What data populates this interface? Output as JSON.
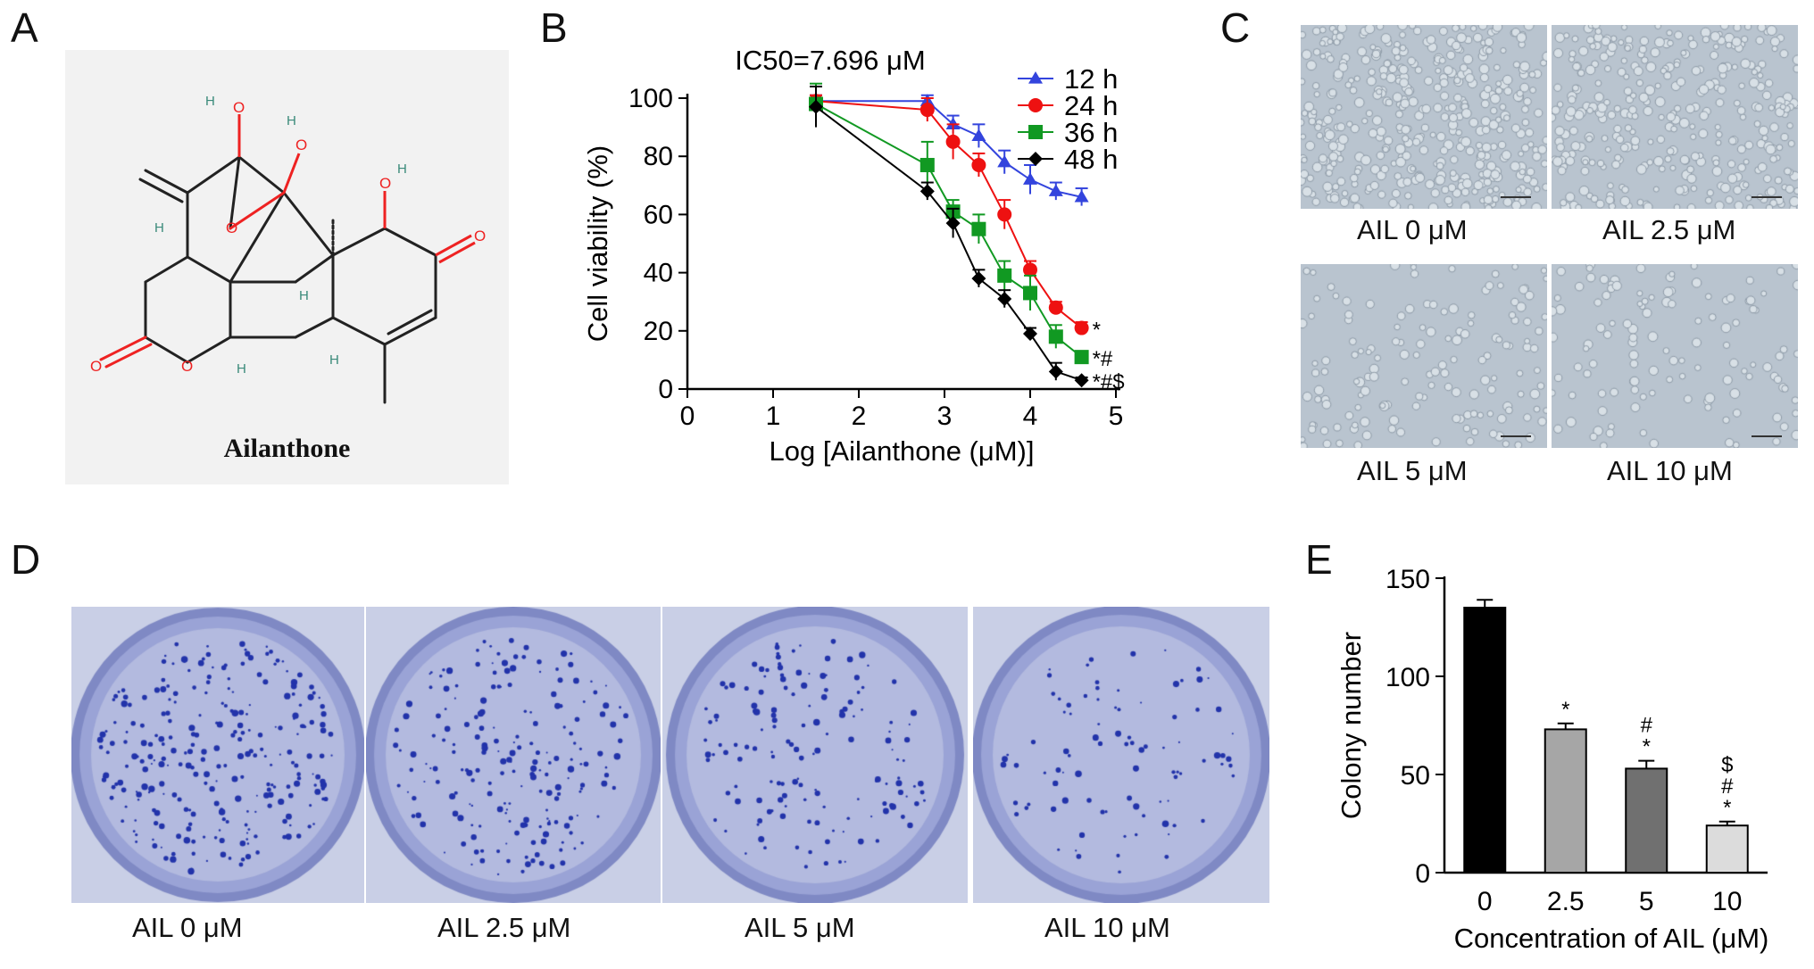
{
  "panels": {
    "a": {
      "letter": "A",
      "molecule_name": "Ailanthone"
    },
    "b": {
      "letter": "B"
    },
    "c": {
      "letter": "C",
      "captions": [
        "AIL 0 μM",
        "AIL 2.5 μM",
        "AIL 5 μM",
        "AIL 10 μM"
      ]
    },
    "d": {
      "letter": "D",
      "captions": [
        "AIL 0 μM",
        "AIL 2.5 μM",
        "AIL 5 μM",
        "AIL 10 μM"
      ]
    },
    "e": {
      "letter": "E"
    }
  },
  "colors": {
    "h12": "#3344dd",
    "h24": "#ee1111",
    "h36": "#119922",
    "h48": "#000000",
    "bar0": "#000000",
    "bar1": "#a6a6a6",
    "bar2": "#707070",
    "bar3": "#dcdcdc",
    "dish": "#9aa3d6",
    "colony": "#2233aa"
  },
  "chart_data": [
    {
      "type": "line",
      "annotation": "IC50=7.696 μM",
      "xlabel": "Log [Ailanthone (μM)]",
      "ylabel": "Cell viability (%)",
      "xlim": [
        0,
        5
      ],
      "ylim": [
        0,
        100
      ],
      "xticks": [
        0,
        1,
        2,
        3,
        4,
        5
      ],
      "yticks": [
        0,
        20,
        40,
        60,
        80,
        100
      ],
      "x": [
        1.5,
        2.8,
        3.1,
        3.4,
        3.7,
        4.0,
        4.3,
        4.6
      ],
      "legend_position": "top-right",
      "series": [
        {
          "name": "12 h",
          "marker": "triangle",
          "values": [
            99,
            99,
            91,
            87,
            78,
            72,
            68,
            66
          ],
          "errors": [
            2,
            2,
            3,
            4,
            4,
            5,
            3,
            3
          ],
          "end_mark": ""
        },
        {
          "name": "24 h",
          "marker": "circle",
          "values": [
            99,
            96,
            85,
            77,
            60,
            41,
            28,
            21
          ],
          "errors": [
            2,
            4,
            6,
            4,
            5,
            3,
            2,
            2
          ],
          "end_mark": "*"
        },
        {
          "name": "36 h",
          "marker": "square",
          "values": [
            98,
            77,
            61,
            55,
            39,
            33,
            18,
            11
          ],
          "errors": [
            7,
            8,
            4,
            5,
            5,
            6,
            4,
            2
          ],
          "end_mark": "*#"
        },
        {
          "name": "48 h",
          "marker": "diamond",
          "values": [
            97,
            68,
            57,
            38,
            31,
            19,
            6,
            3
          ],
          "errors": [
            7,
            3,
            5,
            3,
            3,
            2,
            3,
            1
          ],
          "end_mark": "*#$"
        }
      ]
    },
    {
      "type": "bar",
      "xlabel": "Concentration of AIL (μM)",
      "ylabel": "Colony number",
      "ylim": [
        0,
        150
      ],
      "yticks": [
        0,
        50,
        100,
        150
      ],
      "categories": [
        "0",
        "2.5",
        "5",
        "10"
      ],
      "values": [
        135,
        73,
        53,
        24
      ],
      "errors": [
        4,
        3,
        4,
        2
      ],
      "annotations": [
        [],
        [
          "*"
        ],
        [
          "#",
          "*"
        ],
        [
          "$",
          "#",
          "*"
        ]
      ]
    }
  ]
}
